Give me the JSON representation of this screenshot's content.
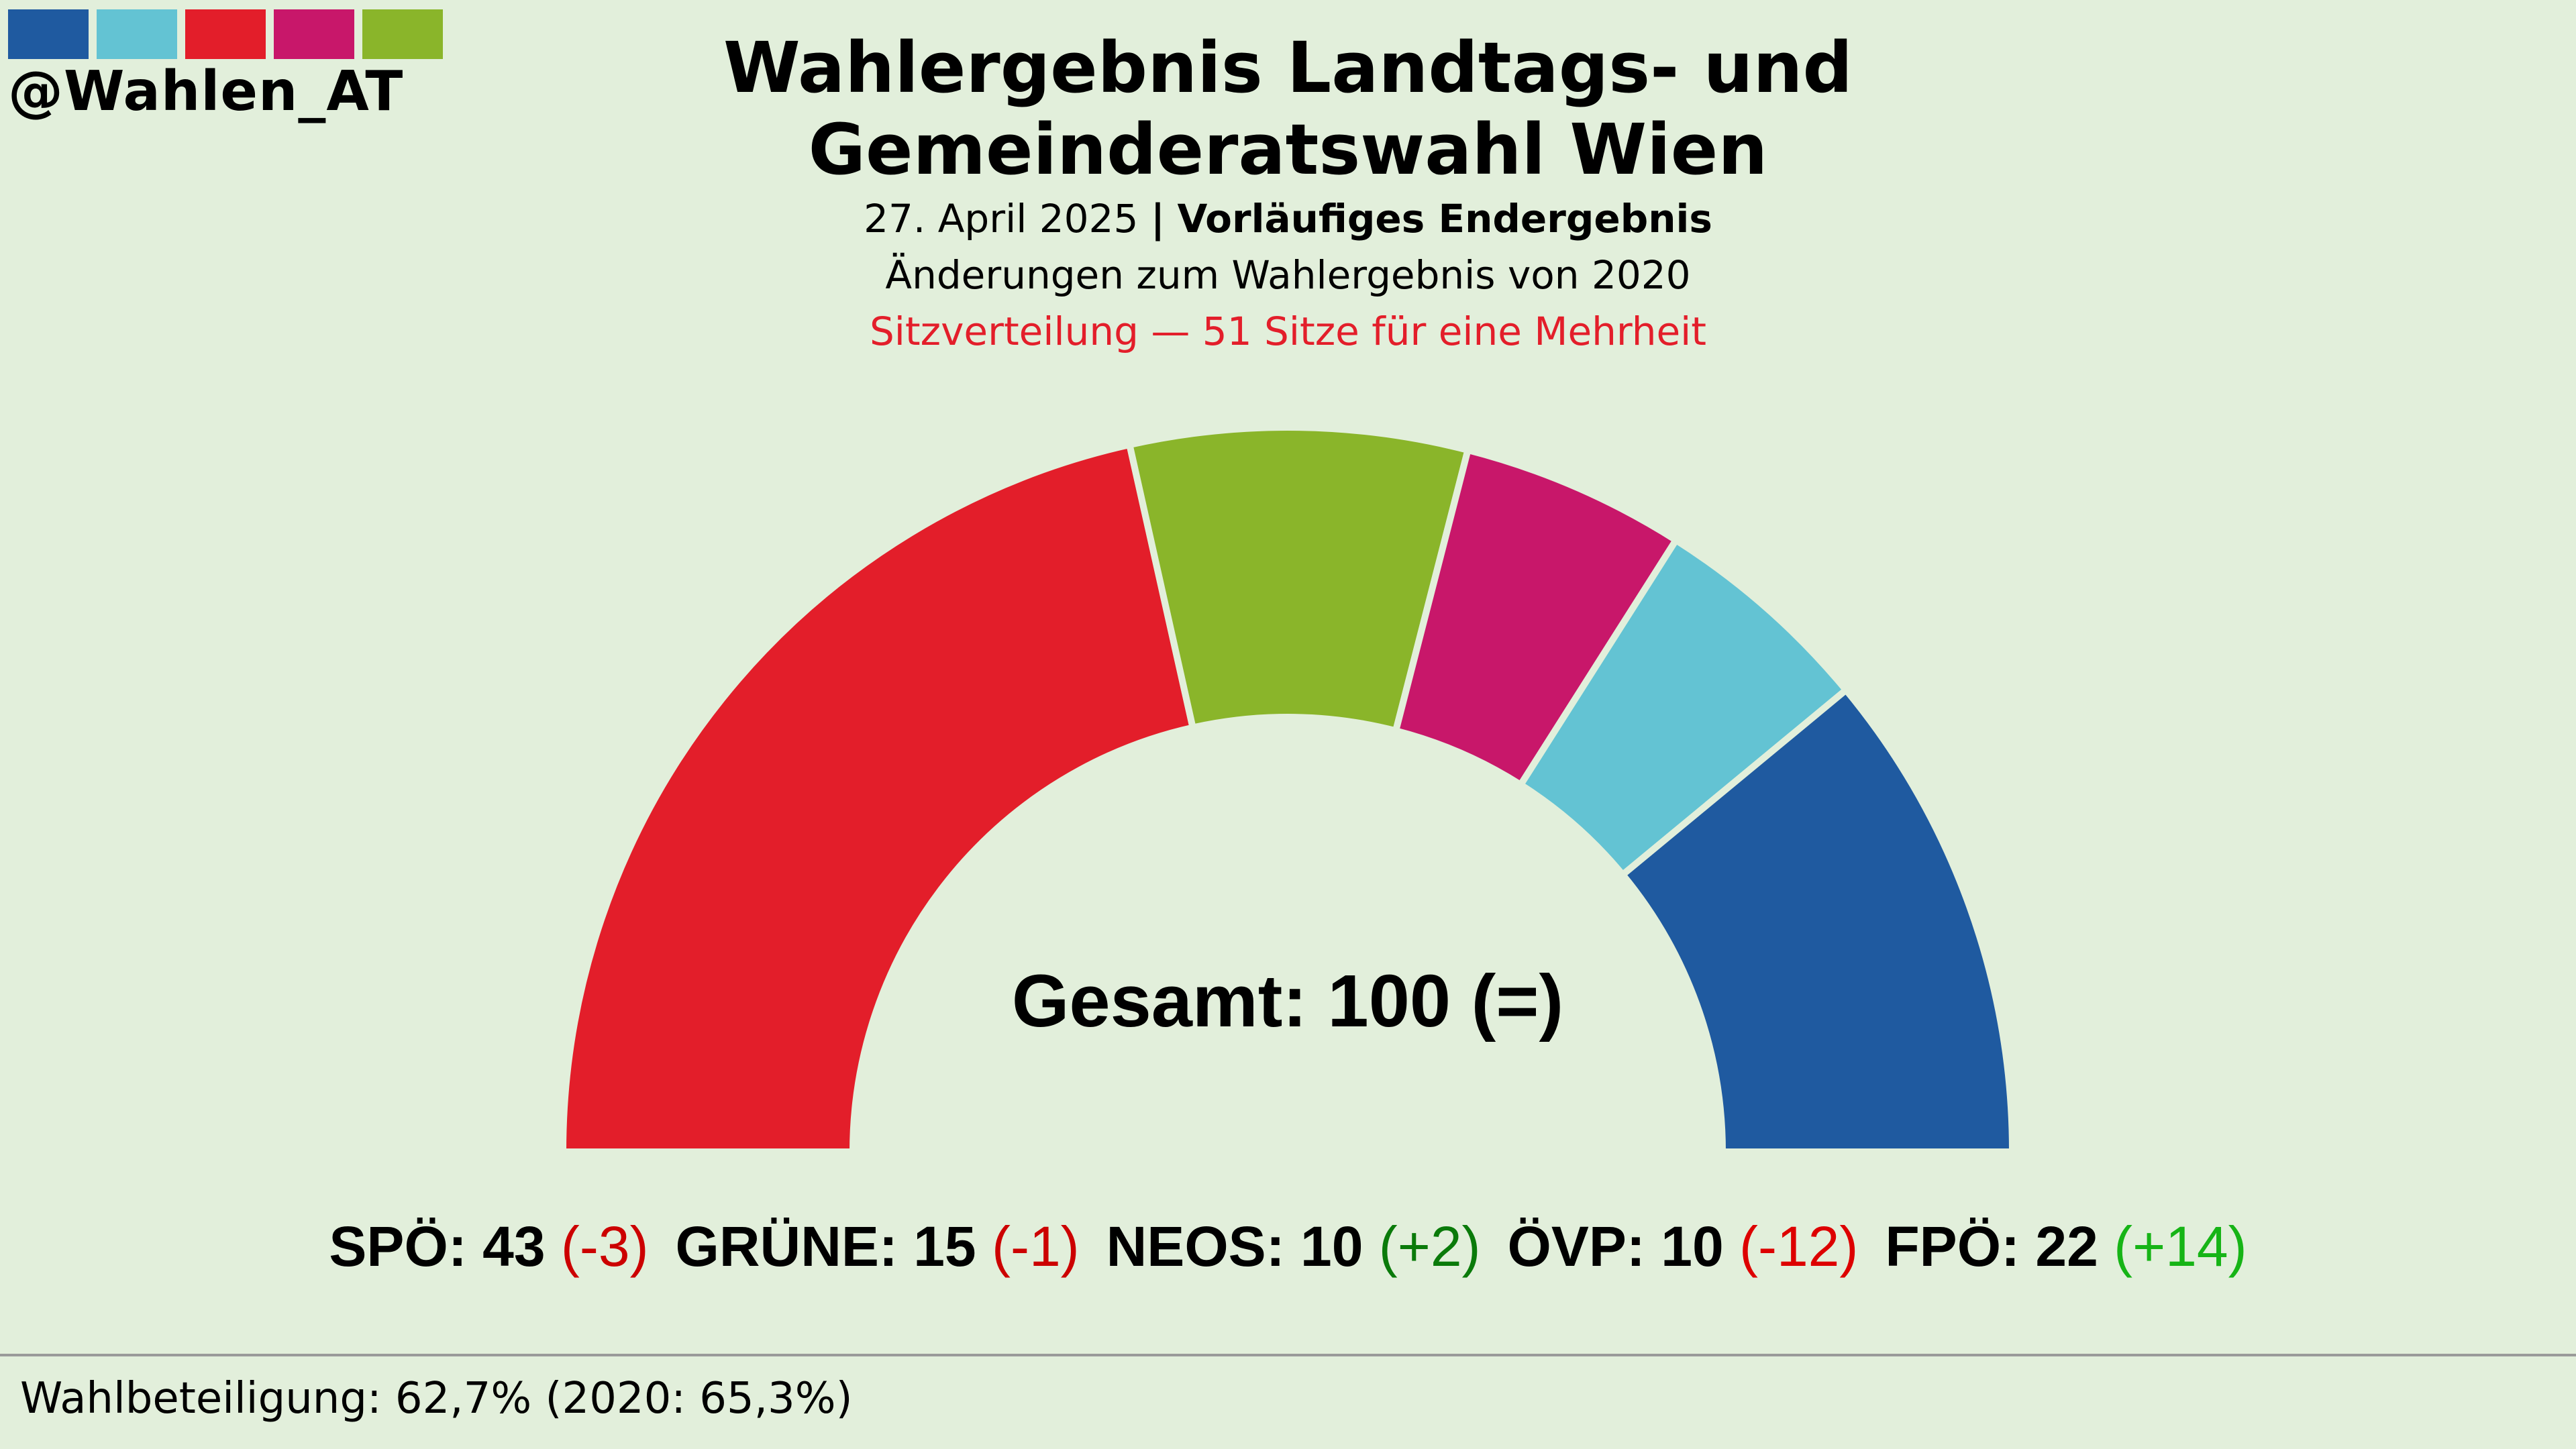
{
  "brand": {
    "handle": "@Wahlen_AT",
    "swatch_colors": [
      "#1f5aa0",
      "#63c3d3",
      "#e31e2a",
      "#c8176a",
      "#8ab52a"
    ]
  },
  "header": {
    "title_line1": "Wahlergebnis Landtags- und",
    "title_line2": "Gemeinderatswahl Wien",
    "date": "27. April 2025",
    "separator": "|",
    "status": "Vorläufiges Endergebnis",
    "changes_note": "Änderungen zum Wahlergebnis von 2020",
    "seat_note": "Sitzverteilung — 51 Sitze für eine Mehrheit"
  },
  "chart_data": {
    "type": "pie",
    "subtype": "parliament-semicircle",
    "total_label": "Gesamt: 100 (=)",
    "total_seats": 100,
    "series": [
      {
        "name": "SPÖ",
        "seats": 43,
        "change": "(-3)",
        "change_color": "#cc0000",
        "color": "#e31e2a"
      },
      {
        "name": "GRÜNE",
        "seats": 15,
        "change": "(-1)",
        "change_color": "#cc0000",
        "color": "#8ab52a"
      },
      {
        "name": "NEOS",
        "seats": 10,
        "change": "(+2)",
        "change_color": "#0a7a0a",
        "color": "#c8176a"
      },
      {
        "name": "ÖVP",
        "seats": 10,
        "change": "(-12)",
        "change_color": "#dd0000",
        "color": "#63c3d3"
      },
      {
        "name": "FPÖ",
        "seats": 22,
        "change": "(+14)",
        "change_color": "#16b416",
        "color": "#1f5aa0"
      }
    ]
  },
  "footer": {
    "turnout": "Wahlbeteiligung: 62,7% (2020: 65,3%)"
  },
  "colors": {
    "background": "#e2efdb",
    "seat_note": "#e31e2a"
  }
}
